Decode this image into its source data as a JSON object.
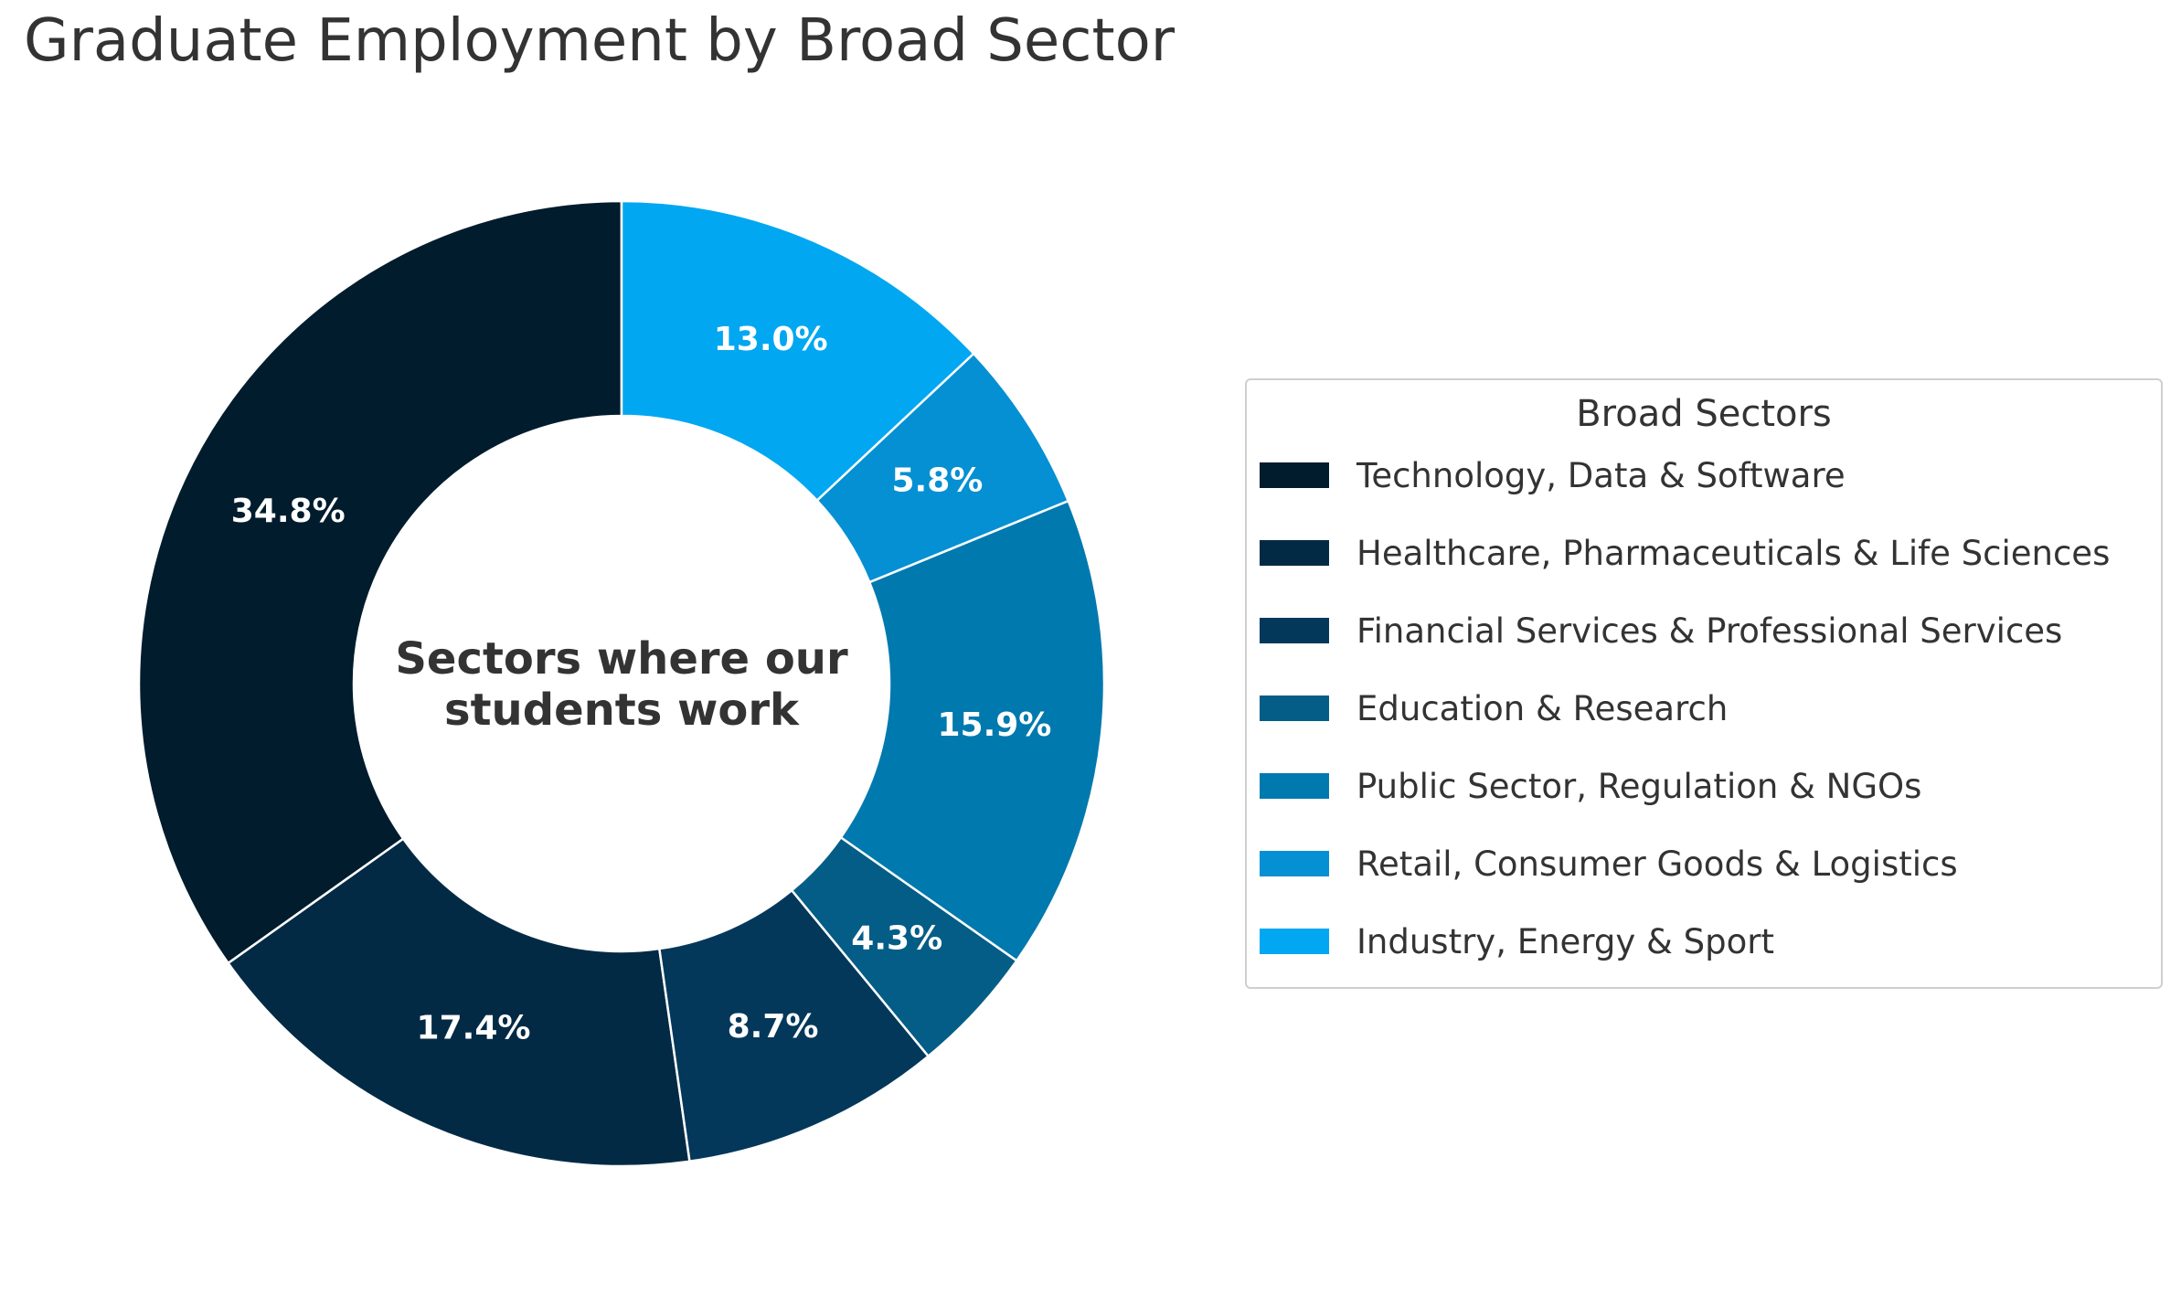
{
  "title": "Graduate Employment by Broad Sector",
  "center_text": [
    "Sectors where our",
    "students work"
  ],
  "legend": {
    "title": "Broad Sectors",
    "items": [
      {
        "label": "Technology, Data & Software",
        "color": "#011c2d"
      },
      {
        "label": "Healthcare, Pharmaceuticals & Life Sciences",
        "color": "#022a45"
      },
      {
        "label": "Financial Services & Professional Services",
        "color": "#03385b"
      },
      {
        "label": "Education & Research",
        "color": "#045d87"
      },
      {
        "label": "Public Sector, Regulation & NGOs",
        "color": "#0079ae"
      },
      {
        "label": "Retail, Consumer Goods & Logistics",
        "color": "#0490d3"
      },
      {
        "label": "Industry, Energy & Sport",
        "color": "#02a7f1"
      }
    ]
  },
  "chart_data": {
    "type": "pie",
    "donut": true,
    "start": "top",
    "direction": "counterclockwise",
    "categories": [
      "Technology, Data & Software",
      "Healthcare, Pharmaceuticals & Life Sciences",
      "Financial Services & Professional Services",
      "Education & Research",
      "Public Sector, Regulation & NGOs",
      "Retail, Consumer Goods & Logistics",
      "Industry, Energy & Sport"
    ],
    "values": [
      34.8,
      17.4,
      8.7,
      4.3,
      15.9,
      5.8,
      13.0
    ],
    "labels": [
      "34.8%",
      "17.4%",
      "8.7%",
      "4.3%",
      "15.9%",
      "5.8%",
      "13.0%"
    ],
    "colors": [
      "#011c2d",
      "#022a45",
      "#03385b",
      "#045d87",
      "#0079ae",
      "#0490d3",
      "#02a7f1"
    ],
    "legend_placement": "right"
  }
}
